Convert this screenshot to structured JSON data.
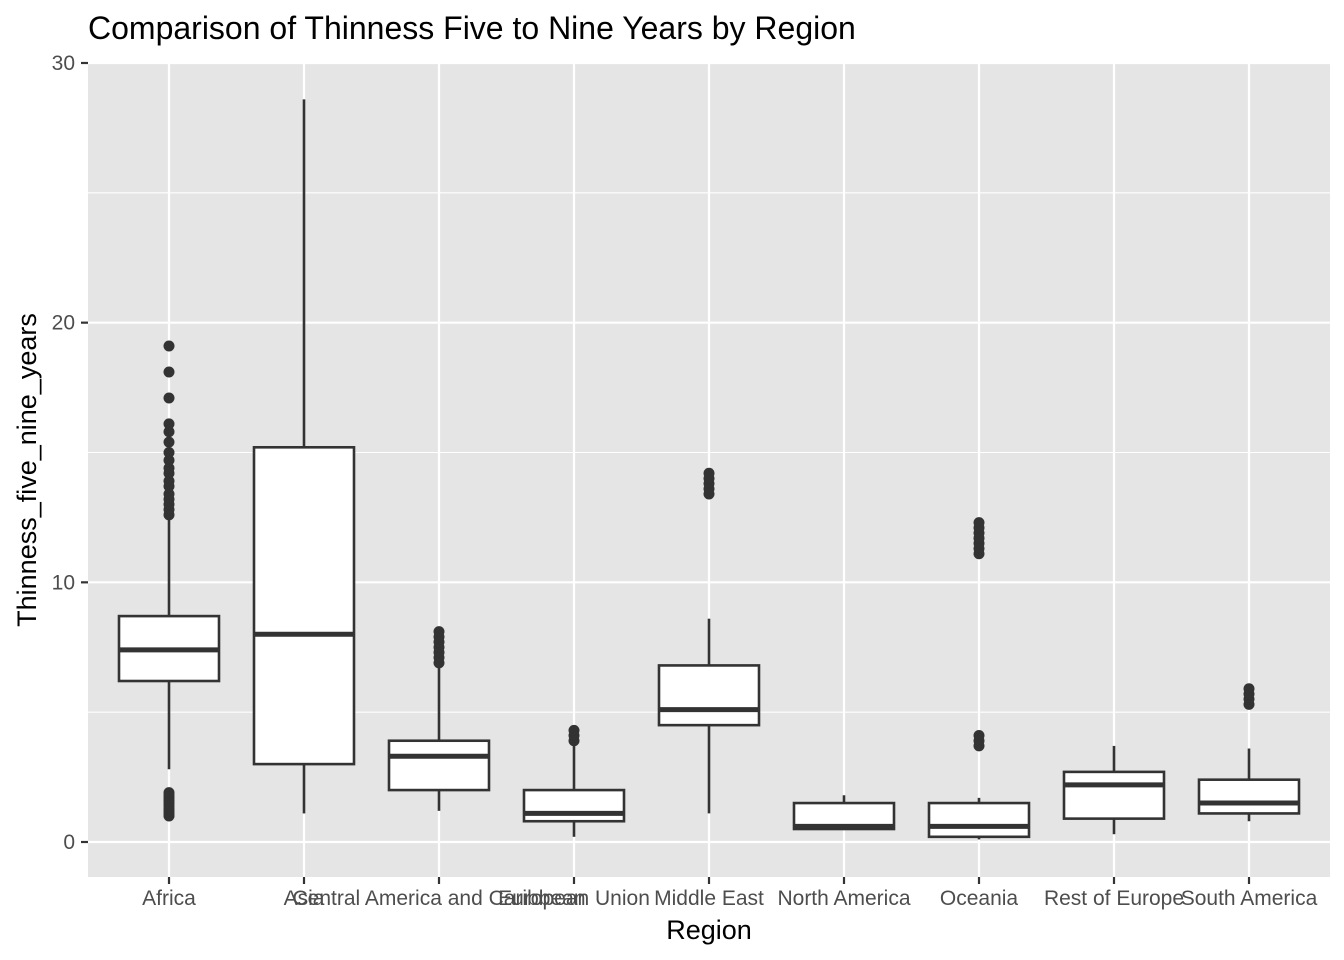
{
  "chart_data": {
    "type": "boxplot",
    "title": "Comparison of Thinness Five to Nine Years by Region",
    "xlabel": "Region",
    "ylabel": "Thinness_five_nine_years",
    "ylim": [
      -1.3,
      30
    ],
    "yticks": [
      0,
      10,
      20,
      30
    ],
    "grid": true,
    "colors": {
      "panel": "#e5e5e5",
      "box_fill": "#ffffff",
      "stroke": "#333333",
      "tick_text": "#4d4d4d"
    },
    "categories": [
      "Africa",
      "Asia",
      "Central America and Caribbean",
      "European Union",
      "Middle East",
      "North America",
      "Oceania",
      "Rest of Europe",
      "South America"
    ],
    "boxes": [
      {
        "category": "Africa",
        "whisker_low": 2.8,
        "q1": 6.2,
        "median": 7.4,
        "q3": 8.7,
        "whisker_high": 12.5,
        "outliers": [
          1.0,
          1.1,
          1.2,
          1.3,
          1.4,
          1.5,
          1.6,
          1.7,
          1.8,
          1.9,
          12.6,
          12.8,
          13.0,
          13.2,
          13.4,
          13.7,
          13.9,
          14.2,
          14.4,
          14.7,
          15.0,
          15.4,
          15.8,
          16.1,
          17.1,
          18.1,
          19.1
        ]
      },
      {
        "category": "Asia",
        "whisker_low": 1.1,
        "q1": 3.0,
        "median": 8.0,
        "q3": 15.2,
        "whisker_high": 28.6,
        "outliers": []
      },
      {
        "category": "Central America and Caribbean",
        "whisker_low": 1.2,
        "q1": 2.0,
        "median": 3.3,
        "q3": 3.9,
        "whisker_high": 6.8,
        "outliers": [
          6.9,
          7.1,
          7.3,
          7.5,
          7.7,
          7.9,
          8.1
        ]
      },
      {
        "category": "European Union",
        "whisker_low": 0.2,
        "q1": 0.8,
        "median": 1.1,
        "q3": 2.0,
        "whisker_high": 3.8,
        "outliers": [
          3.9,
          4.1,
          4.3
        ]
      },
      {
        "category": "Middle East",
        "whisker_low": 1.1,
        "q1": 4.5,
        "median": 5.1,
        "q3": 6.8,
        "whisker_high": 8.6,
        "outliers": [
          13.4,
          13.6,
          13.8,
          14.0,
          14.2
        ]
      },
      {
        "category": "North America",
        "whisker_low": 0.5,
        "q1": 0.5,
        "median": 0.6,
        "q3": 1.5,
        "whisker_high": 1.8,
        "outliers": []
      },
      {
        "category": "Oceania",
        "whisker_low": 0.1,
        "q1": 0.2,
        "median": 0.6,
        "q3": 1.5,
        "whisker_high": 1.7,
        "outliers": [
          3.7,
          3.9,
          4.1,
          11.1,
          11.3,
          11.5,
          11.7,
          11.9,
          12.1,
          12.3
        ]
      },
      {
        "category": "Rest of Europe",
        "whisker_low": 0.3,
        "q1": 0.9,
        "median": 2.2,
        "q3": 2.7,
        "whisker_high": 3.7,
        "outliers": []
      },
      {
        "category": "South America",
        "whisker_low": 0.8,
        "q1": 1.1,
        "median": 1.5,
        "q3": 2.4,
        "whisker_high": 3.6,
        "outliers": [
          5.3,
          5.5,
          5.7,
          5.9
        ]
      }
    ]
  }
}
